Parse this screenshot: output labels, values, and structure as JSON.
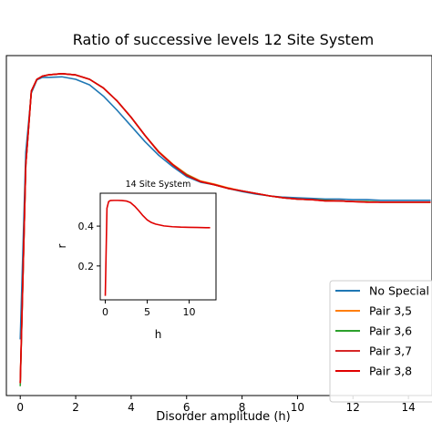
{
  "chart_data": [
    {
      "type": "line",
      "title": "Ratio of successive levels 12 Site System",
      "xlabel": "Disorder amplitude (h)",
      "ylabel": "",
      "xlim": [
        -0.5,
        14.85
      ],
      "ylim": [
        0.03,
        0.575
      ],
      "xticks": [
        0,
        2,
        4,
        6,
        8,
        10,
        12,
        14
      ],
      "xtick_labels": [
        "0",
        "2",
        "4",
        "6",
        "8",
        "10",
        "12",
        "14"
      ],
      "legend_position": "lower-right",
      "series": [
        {
          "name": "No Special",
          "color": "#1f77b4",
          "x": [
            0.0,
            0.2,
            0.4,
            0.6,
            0.8,
            1.0,
            1.5,
            2.0,
            2.5,
            3.0,
            3.5,
            4.0,
            4.5,
            5.0,
            5.5,
            6.0,
            6.5,
            7.0,
            7.5,
            8.0,
            8.5,
            9.0,
            9.5,
            10.0,
            10.5,
            11.0,
            11.5,
            12.0,
            12.5,
            13.0,
            13.5,
            14.0,
            14.5,
            14.8
          ],
          "y": [
            0.12,
            0.42,
            0.515,
            0.536,
            0.54,
            0.54,
            0.541,
            0.537,
            0.528,
            0.51,
            0.487,
            0.462,
            0.437,
            0.415,
            0.397,
            0.381,
            0.372,
            0.368,
            0.362,
            0.357,
            0.353,
            0.35,
            0.348,
            0.347,
            0.346,
            0.345,
            0.345,
            0.344,
            0.344,
            0.343,
            0.343,
            0.343,
            0.343,
            0.343
          ]
        },
        {
          "name": "Pair 3,5",
          "color": "#ff7f0e",
          "x": [
            0.0,
            0.2,
            0.4,
            0.6,
            0.8,
            1.0,
            1.5,
            2.0,
            2.5,
            3.0,
            3.5,
            4.0,
            4.5,
            5.0,
            5.5,
            6.0,
            6.5,
            7.0,
            7.5,
            8.0,
            8.5,
            9.0,
            9.5,
            10.0,
            10.5,
            11.0,
            11.5,
            12.0,
            12.5,
            13.0,
            13.5,
            14.0,
            14.5,
            14.8
          ],
          "y": [
            0.05,
            0.4,
            0.518,
            0.537,
            0.542,
            0.544,
            0.546,
            0.544,
            0.537,
            0.523,
            0.502,
            0.476,
            0.447,
            0.421,
            0.401,
            0.385,
            0.374,
            0.369,
            0.363,
            0.358,
            0.354,
            0.35,
            0.347,
            0.345,
            0.344,
            0.343,
            0.342,
            0.341,
            0.341,
            0.34,
            0.34,
            0.34,
            0.34,
            0.34
          ]
        },
        {
          "name": "Pair 3,6",
          "color": "#2ca02c",
          "x": [
            0.0,
            0.2,
            0.4,
            0.6,
            0.8,
            1.0,
            1.5,
            2.0,
            2.5,
            3.0,
            3.5,
            4.0,
            4.5,
            5.0,
            5.5,
            6.0,
            6.5,
            7.0,
            7.5,
            8.0,
            8.5,
            9.0,
            9.5,
            10.0,
            10.5,
            11.0,
            11.5,
            12.0,
            12.5,
            13.0,
            13.5,
            14.0,
            14.5,
            14.8
          ],
          "y": [
            0.045,
            0.4,
            0.518,
            0.537,
            0.542,
            0.544,
            0.546,
            0.544,
            0.537,
            0.523,
            0.502,
            0.476,
            0.447,
            0.42,
            0.4,
            0.384,
            0.373,
            0.368,
            0.362,
            0.358,
            0.354,
            0.35,
            0.347,
            0.345,
            0.344,
            0.343,
            0.342,
            0.341,
            0.341,
            0.34,
            0.34,
            0.34,
            0.34,
            0.34
          ]
        },
        {
          "name": "Pair 3,7",
          "color": "#d62728",
          "x": [
            0.0,
            0.2,
            0.4,
            0.6,
            0.8,
            1.0,
            1.5,
            2.0,
            2.5,
            3.0,
            3.5,
            4.0,
            4.5,
            5.0,
            5.5,
            6.0,
            6.5,
            7.0,
            7.5,
            8.0,
            8.5,
            9.0,
            9.5,
            10.0,
            10.5,
            11.0,
            11.5,
            12.0,
            12.5,
            13.0,
            13.5,
            14.0,
            14.5,
            14.8
          ],
          "y": [
            0.05,
            0.4,
            0.518,
            0.537,
            0.542,
            0.544,
            0.546,
            0.544,
            0.537,
            0.523,
            0.502,
            0.476,
            0.447,
            0.42,
            0.4,
            0.383,
            0.373,
            0.368,
            0.362,
            0.358,
            0.354,
            0.35,
            0.347,
            0.345,
            0.344,
            0.342,
            0.342,
            0.341,
            0.34,
            0.34,
            0.34,
            0.34,
            0.34,
            0.34
          ]
        },
        {
          "name": "Pair 3,8",
          "color": "#e00000",
          "x": [
            0.0,
            0.2,
            0.4,
            0.6,
            0.8,
            1.0,
            1.5,
            2.0,
            2.5,
            3.0,
            3.5,
            4.0,
            4.5,
            5.0,
            5.5,
            6.0,
            6.5,
            7.0,
            7.5,
            8.0,
            8.5,
            9.0,
            9.5,
            10.0,
            10.5,
            11.0,
            11.5,
            12.0,
            12.5,
            13.0,
            13.5,
            14.0,
            14.5,
            14.8
          ],
          "y": [
            0.05,
            0.4,
            0.518,
            0.537,
            0.542,
            0.544,
            0.546,
            0.544,
            0.537,
            0.523,
            0.502,
            0.476,
            0.447,
            0.42,
            0.4,
            0.383,
            0.373,
            0.368,
            0.362,
            0.358,
            0.354,
            0.35,
            0.347,
            0.345,
            0.344,
            0.342,
            0.342,
            0.341,
            0.34,
            0.34,
            0.34,
            0.34,
            0.34,
            0.34
          ]
        }
      ]
    },
    {
      "type": "line",
      "title": "14 Site System",
      "xlabel": "h",
      "ylabel": "r",
      "xlim": [
        -0.6,
        13.2
      ],
      "ylim": [
        0.03,
        0.565
      ],
      "xticks": [
        0,
        5,
        10
      ],
      "xtick_labels": [
        "0",
        "5",
        "10"
      ],
      "yticks": [
        0.2,
        0.4
      ],
      "ytick_labels": [
        "0.2",
        "0.4"
      ],
      "series": [
        {
          "name": "",
          "color": "#e00000",
          "x": [
            0.0,
            0.2,
            0.4,
            0.6,
            1.0,
            1.5,
            2.0,
            2.5,
            3.0,
            3.5,
            4.0,
            4.5,
            5.0,
            5.5,
            6.0,
            7.0,
            8.0,
            9.0,
            10.0,
            11.0,
            12.0,
            12.5
          ],
          "y": [
            0.05,
            0.49,
            0.523,
            0.528,
            0.529,
            0.529,
            0.528,
            0.526,
            0.518,
            0.5,
            0.477,
            0.452,
            0.431,
            0.418,
            0.41,
            0.401,
            0.397,
            0.395,
            0.394,
            0.393,
            0.392,
            0.392
          ]
        }
      ]
    }
  ]
}
